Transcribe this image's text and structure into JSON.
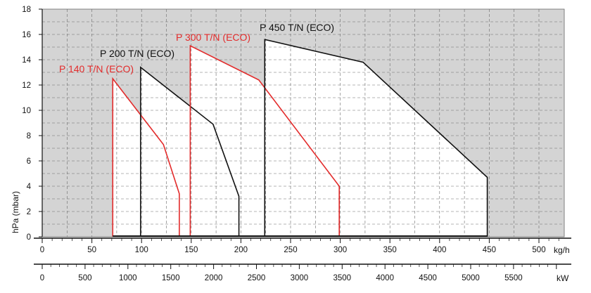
{
  "chart_data": {
    "type": "area",
    "title": "",
    "ylabel": "hPa (mbar)",
    "xlabel_primary": "kg/h",
    "xlabel_secondary": "kW",
    "x_primary": {
      "lim": [
        0,
        520
      ],
      "ticks": [
        0,
        50,
        100,
        150,
        200,
        250,
        300,
        350,
        400,
        450,
        500
      ],
      "tick_labels": [
        "0",
        "50",
        "100",
        "150",
        "200",
        "250",
        "300",
        "350",
        "400",
        "450",
        "500"
      ]
    },
    "x_secondary": {
      "ticks": [
        0,
        500,
        1000,
        1500,
        2000,
        2500,
        3000,
        3500,
        4000,
        4500,
        5000,
        5500
      ],
      "tick_labels": [
        "0",
        "500",
        "1000",
        "1500",
        "2000",
        "2500",
        "3000",
        "3500",
        "4000",
        "4500",
        "5000",
        "5500"
      ]
    },
    "y": {
      "lim": [
        0,
        18
      ],
      "ticks": [
        0,
        2,
        4,
        6,
        8,
        10,
        12,
        14,
        16,
        18
      ],
      "tick_labels": [
        "0",
        "2",
        "4",
        "6",
        "8",
        "10",
        "12",
        "14",
        "16",
        "18"
      ]
    },
    "grid": true,
    "series": [
      {
        "name": "P 140 T/N (ECO)",
        "color": "#e32b2b",
        "x": [
          71,
          71,
          122,
          138,
          138
        ],
        "y": [
          0,
          12.5,
          7.3,
          3.4,
          0
        ]
      },
      {
        "name": "P 200 T/N (ECO)",
        "color": "#111111",
        "x": [
          99,
          99,
          172,
          198,
          198
        ],
        "y": [
          0,
          13.4,
          8.9,
          3.2,
          0
        ]
      },
      {
        "name": "P 300 T/N (ECO)",
        "color": "#e32b2b",
        "x": [
          149,
          149,
          218,
          299,
          299
        ],
        "y": [
          0,
          15.1,
          12.4,
          4.0,
          0
        ]
      },
      {
        "name": "P 450 T/N (ECO)",
        "color": "#111111",
        "x": [
          224,
          224,
          323,
          448,
          448
        ],
        "y": [
          0,
          15.6,
          13.8,
          4.7,
          0
        ]
      }
    ],
    "colors": {
      "background": "#d4d4d4",
      "envelope_fill": "#ffffff",
      "grid": "#6a6a6a",
      "axis": "#111111"
    }
  }
}
